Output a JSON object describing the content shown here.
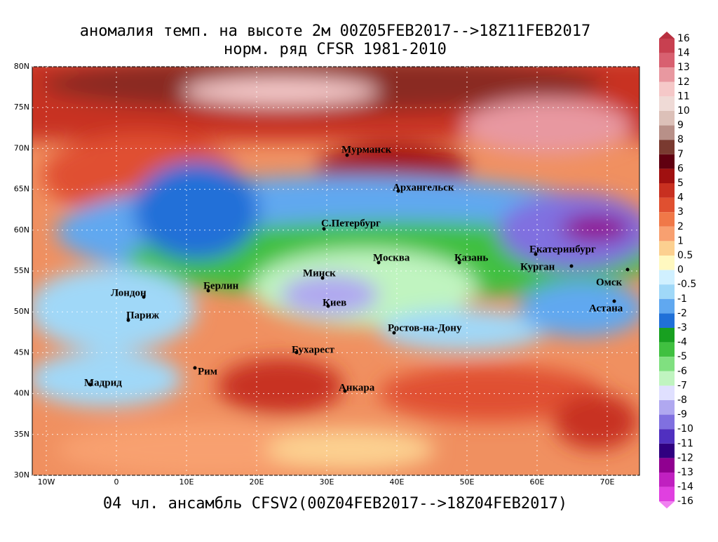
{
  "header": {
    "title_line1": "аномалия темп. на высоте 2м 00Z05FEB2017-->18Z11FEB2017",
    "title_line2": "норм. ряд CFSR 1981-2010"
  },
  "footer": {
    "text": "04 чл. ансамбль CFSV2(00Z04FEB2017-->18Z04FEB2017)"
  },
  "map": {
    "lat_labels": [
      "80N",
      "75N",
      "70N",
      "65N",
      "60N",
      "55N",
      "50N",
      "45N",
      "40N",
      "35N",
      "30N"
    ],
    "lon_labels": [
      "10W",
      "0",
      "10E",
      "20E",
      "30E",
      "40E",
      "50E",
      "60E",
      "70E"
    ],
    "cities": [
      "Мурманск",
      "Архангельск",
      "С.Петербург",
      "Москва",
      "Казань",
      "Екатеринбург",
      "Курган",
      "Омск",
      "Астана",
      "Минск",
      "Киев",
      "Берлин",
      "Лондон",
      "Париж",
      "Ростов-на-Дону",
      "Бухарест",
      "Рим",
      "Мадрид",
      "Анкара"
    ]
  },
  "colorbar": {
    "labels": [
      "16",
      "14",
      "13",
      "12",
      "11",
      "10",
      "9",
      "8",
      "7",
      "6",
      "5",
      "4",
      "3",
      "2",
      "1",
      "0.5",
      "0",
      "-0.5",
      "-1",
      "-2",
      "-3",
      "-4",
      "-5",
      "-6",
      "-7",
      "-8",
      "-9",
      "-10",
      "-11",
      "-12",
      "-13",
      "-14",
      "-16"
    ],
    "colors": [
      "#b83040",
      "#c84050",
      "#d86070",
      "#e898a0",
      "#f5c8c8",
      "#efdad6",
      "#dcc0b8",
      "#b89088",
      "#7a3a30",
      "#600010",
      "#a01010",
      "#c83020",
      "#e05030",
      "#f07848",
      "#f8a070",
      "#fcd090",
      "#fff8c0",
      "#d0f0ff",
      "#a0d8f8",
      "#60a8f0",
      "#2070d8",
      "#18a020",
      "#40c040",
      "#80e080",
      "#c0f4c0",
      "#e0e0ff",
      "#b0a8f0",
      "#8070e0",
      "#5030c0",
      "#300080",
      "#900090",
      "#c020c0",
      "#e040e0",
      "#f080f0"
    ]
  }
}
